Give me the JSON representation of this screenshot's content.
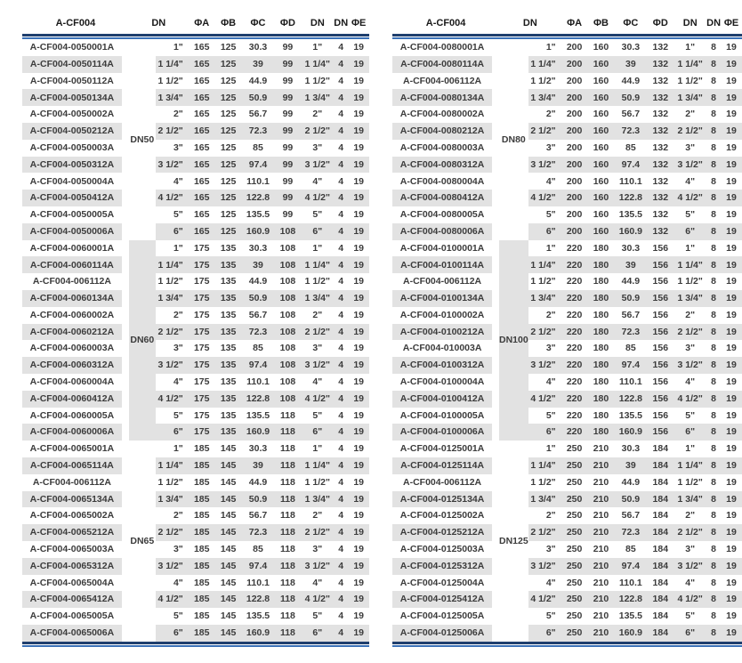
{
  "columns": [
    "A-CF004",
    "DN",
    "ΦA",
    "ΦB",
    "ΦC",
    "ΦD",
    "DN",
    "DN",
    "ΦE"
  ],
  "colors": {
    "row_stripe": "#e2e2e2",
    "rule_dark_blue": "#1f3f6e",
    "rule_light_blue": "#3b72b8",
    "body_text": "#3c3c3c",
    "header_text": "#1a1a1a"
  },
  "tables": [
    {
      "groups": [
        {
          "dn": "DN50",
          "shaded": false,
          "phi_a": "165",
          "phi_b": "125",
          "dn_count": "4",
          "phi_e": "19",
          "rows": [
            {
              "part": "A-CF004-0050001A",
              "size": "1\"",
              "phi_c": "30.3",
              "phi_d": "99"
            },
            {
              "part": "A-CF004-0050114A",
              "size": "1 1/4\"",
              "phi_c": "39",
              "phi_d": "99"
            },
            {
              "part": "A-CF004-0050112A",
              "size": "1 1/2\"",
              "phi_c": "44.9",
              "phi_d": "99"
            },
            {
              "part": "A-CF004-0050134A",
              "size": "1 3/4\"",
              "phi_c": "50.9",
              "phi_d": "99"
            },
            {
              "part": "A-CF004-0050002A",
              "size": "2\"",
              "phi_c": "56.7",
              "phi_d": "99"
            },
            {
              "part": "A-CF004-0050212A",
              "size": "2 1/2\"",
              "phi_c": "72.3",
              "phi_d": "99"
            },
            {
              "part": "A-CF004-0050003A",
              "size": "3\"",
              "phi_c": "85",
              "phi_d": "99"
            },
            {
              "part": "A-CF004-0050312A",
              "size": "3 1/2\"",
              "phi_c": "97.4",
              "phi_d": "99"
            },
            {
              "part": "A-CF004-0050004A",
              "size": "4\"",
              "phi_c": "110.1",
              "phi_d": "99"
            },
            {
              "part": "A-CF004-0050412A",
              "size": "4 1/2\"",
              "phi_c": "122.8",
              "phi_d": "99"
            },
            {
              "part": "A-CF004-0050005A",
              "size": "5\"",
              "phi_c": "135.5",
              "phi_d": "99"
            },
            {
              "part": "A-CF004-0050006A",
              "size": "6\"",
              "phi_c": "160.9",
              "phi_d": "108"
            }
          ]
        },
        {
          "dn": "DN60",
          "shaded": true,
          "phi_a": "175",
          "phi_b": "135",
          "dn_count": "4",
          "phi_e": "19",
          "rows": [
            {
              "part": "A-CF004-0060001A",
              "size": "1\"",
              "phi_c": "30.3",
              "phi_d": "108"
            },
            {
              "part": "A-CF004-0060114A",
              "size": "1 1/4\"",
              "phi_c": "39",
              "phi_d": "108"
            },
            {
              "part": "A-CF004-006112A",
              "size": "1 1/2\"",
              "phi_c": "44.9",
              "phi_d": "108"
            },
            {
              "part": "A-CF004-0060134A",
              "size": "1 3/4\"",
              "phi_c": "50.9",
              "phi_d": "108"
            },
            {
              "part": "A-CF004-0060002A",
              "size": "2\"",
              "phi_c": "56.7",
              "phi_d": "108"
            },
            {
              "part": "A-CF004-0060212A",
              "size": "2 1/2\"",
              "phi_c": "72.3",
              "phi_d": "108"
            },
            {
              "part": "A-CF004-0060003A",
              "size": "3\"",
              "phi_c": "85",
              "phi_d": "108"
            },
            {
              "part": "A-CF004-0060312A",
              "size": "3 1/2\"",
              "phi_c": "97.4",
              "phi_d": "108"
            },
            {
              "part": "A-CF004-0060004A",
              "size": "4\"",
              "phi_c": "110.1",
              "phi_d": "108"
            },
            {
              "part": "A-CF004-0060412A",
              "size": "4 1/2\"",
              "phi_c": "122.8",
              "phi_d": "108"
            },
            {
              "part": "A-CF004-0060005A",
              "size": "5\"",
              "phi_c": "135.5",
              "phi_d": "118"
            },
            {
              "part": "A-CF004-0060006A",
              "size": "6\"",
              "phi_c": "160.9",
              "phi_d": "118"
            }
          ]
        },
        {
          "dn": "DN65",
          "shaded": false,
          "phi_a": "185",
          "phi_b": "145",
          "dn_count": "4",
          "phi_e": "19",
          "rows": [
            {
              "part": "A-CF004-0065001A",
              "size": "1\"",
              "phi_c": "30.3",
              "phi_d": "118"
            },
            {
              "part": "A-CF004-0065114A",
              "size": "1 1/4\"",
              "phi_c": "39",
              "phi_d": "118"
            },
            {
              "part": "A-CF004-006112A",
              "size": "1 1/2\"",
              "phi_c": "44.9",
              "phi_d": "118"
            },
            {
              "part": "A-CF004-0065134A",
              "size": "1 3/4\"",
              "phi_c": "50.9",
              "phi_d": "118"
            },
            {
              "part": "A-CF004-0065002A",
              "size": "2\"",
              "phi_c": "56.7",
              "phi_d": "118"
            },
            {
              "part": "A-CF004-0065212A",
              "size": "2 1/2\"",
              "phi_c": "72.3",
              "phi_d": "118"
            },
            {
              "part": "A-CF004-0065003A",
              "size": "3\"",
              "phi_c": "85",
              "phi_d": "118"
            },
            {
              "part": "A-CF004-0065312A",
              "size": "3 1/2\"",
              "phi_c": "97.4",
              "phi_d": "118"
            },
            {
              "part": "A-CF004-0065004A",
              "size": "4\"",
              "phi_c": "110.1",
              "phi_d": "118"
            },
            {
              "part": "A-CF004-0065412A",
              "size": "4 1/2\"",
              "phi_c": "122.8",
              "phi_d": "118"
            },
            {
              "part": "A-CF004-0065005A",
              "size": "5\"",
              "phi_c": "135.5",
              "phi_d": "118"
            },
            {
              "part": "A-CF004-0065006A",
              "size": "6\"",
              "phi_c": "160.9",
              "phi_d": "118"
            }
          ]
        }
      ]
    },
    {
      "groups": [
        {
          "dn": "DN80",
          "shaded": false,
          "phi_a": "200",
          "phi_b": "160",
          "dn_count": "8",
          "phi_e": "19",
          "rows": [
            {
              "part": "A-CF004-0080001A",
              "size": "1\"",
              "phi_c": "30.3",
              "phi_d": "132"
            },
            {
              "part": "A-CF004-0080114A",
              "size": "1 1/4\"",
              "phi_c": "39",
              "phi_d": "132"
            },
            {
              "part": "A-CF004-006112A",
              "size": "1 1/2\"",
              "phi_c": "44.9",
              "phi_d": "132"
            },
            {
              "part": "A-CF004-0080134A",
              "size": "1 3/4\"",
              "phi_c": "50.9",
              "phi_d": "132"
            },
            {
              "part": "A-CF004-0080002A",
              "size": "2\"",
              "phi_c": "56.7",
              "phi_d": "132"
            },
            {
              "part": "A-CF004-0080212A",
              "size": "2 1/2\"",
              "phi_c": "72.3",
              "phi_d": "132"
            },
            {
              "part": "A-CF004-0080003A",
              "size": "3\"",
              "phi_c": "85",
              "phi_d": "132"
            },
            {
              "part": "A-CF004-0080312A",
              "size": "3 1/2\"",
              "phi_c": "97.4",
              "phi_d": "132"
            },
            {
              "part": "A-CF004-0080004A",
              "size": "4\"",
              "phi_c": "110.1",
              "phi_d": "132"
            },
            {
              "part": "A-CF004-0080412A",
              "size": "4 1/2\"",
              "phi_c": "122.8",
              "phi_d": "132"
            },
            {
              "part": "A-CF004-0080005A",
              "size": "5\"",
              "phi_c": "135.5",
              "phi_d": "132"
            },
            {
              "part": "A-CF004-0080006A",
              "size": "6\"",
              "phi_c": "160.9",
              "phi_d": "132"
            }
          ]
        },
        {
          "dn": "DN100",
          "shaded": true,
          "phi_a": "220",
          "phi_b": "180",
          "dn_count": "8",
          "phi_e": "19",
          "rows": [
            {
              "part": "A-CF004-0100001A",
              "size": "1\"",
              "phi_c": "30.3",
              "phi_d": "156"
            },
            {
              "part": "A-CF004-0100114A",
              "size": "1 1/4\"",
              "phi_c": "39",
              "phi_d": "156"
            },
            {
              "part": "A-CF004-006112A",
              "size": "1 1/2\"",
              "phi_c": "44.9",
              "phi_d": "156"
            },
            {
              "part": "A-CF004-0100134A",
              "size": "1 3/4\"",
              "phi_c": "50.9",
              "phi_d": "156"
            },
            {
              "part": "A-CF004-0100002A",
              "size": "2\"",
              "phi_c": "56.7",
              "phi_d": "156"
            },
            {
              "part": "A-CF004-0100212A",
              "size": "2 1/2\"",
              "phi_c": "72.3",
              "phi_d": "156"
            },
            {
              "part": "A-CF004-010003A",
              "size": "3\"",
              "phi_c": "85",
              "phi_d": "156"
            },
            {
              "part": "A-CF004-0100312A",
              "size": "3 1/2\"",
              "phi_c": "97.4",
              "phi_d": "156"
            },
            {
              "part": "A-CF004-0100004A",
              "size": "4\"",
              "phi_c": "110.1",
              "phi_d": "156"
            },
            {
              "part": "A-CF004-0100412A",
              "size": "4 1/2\"",
              "phi_c": "122.8",
              "phi_d": "156"
            },
            {
              "part": "A-CF004-0100005A",
              "size": "5\"",
              "phi_c": "135.5",
              "phi_d": "156"
            },
            {
              "part": "A-CF004-0100006A",
              "size": "6\"",
              "phi_c": "160.9",
              "phi_d": "156"
            }
          ]
        },
        {
          "dn": "DN125",
          "shaded": false,
          "phi_a": "250",
          "phi_b": "210",
          "dn_count": "8",
          "phi_e": "19",
          "rows": [
            {
              "part": "A-CF004-0125001A",
              "size": "1\"",
              "phi_c": "30.3",
              "phi_d": "184"
            },
            {
              "part": "A-CF004-0125114A",
              "size": "1 1/4\"",
              "phi_c": "39",
              "phi_d": "184"
            },
            {
              "part": "A-CF004-006112A",
              "size": "1 1/2\"",
              "phi_c": "44.9",
              "phi_d": "184"
            },
            {
              "part": "A-CF004-0125134A",
              "size": "1 3/4\"",
              "phi_c": "50.9",
              "phi_d": "184"
            },
            {
              "part": "A-CF004-0125002A",
              "size": "2\"",
              "phi_c": "56.7",
              "phi_d": "184"
            },
            {
              "part": "A-CF004-0125212A",
              "size": "2 1/2\"",
              "phi_c": "72.3",
              "phi_d": "184"
            },
            {
              "part": "A-CF004-0125003A",
              "size": "3\"",
              "phi_c": "85",
              "phi_d": "184"
            },
            {
              "part": "A-CF004-0125312A",
              "size": "3 1/2\"",
              "phi_c": "97.4",
              "phi_d": "184"
            },
            {
              "part": "A-CF004-0125004A",
              "size": "4\"",
              "phi_c": "110.1",
              "phi_d": "184"
            },
            {
              "part": "A-CF004-0125412A",
              "size": "4 1/2\"",
              "phi_c": "122.8",
              "phi_d": "184"
            },
            {
              "part": "A-CF004-0125005A",
              "size": "5\"",
              "phi_c": "135.5",
              "phi_d": "184"
            },
            {
              "part": "A-CF004-0125006A",
              "size": "6\"",
              "phi_c": "160.9",
              "phi_d": "184"
            }
          ]
        }
      ]
    }
  ]
}
